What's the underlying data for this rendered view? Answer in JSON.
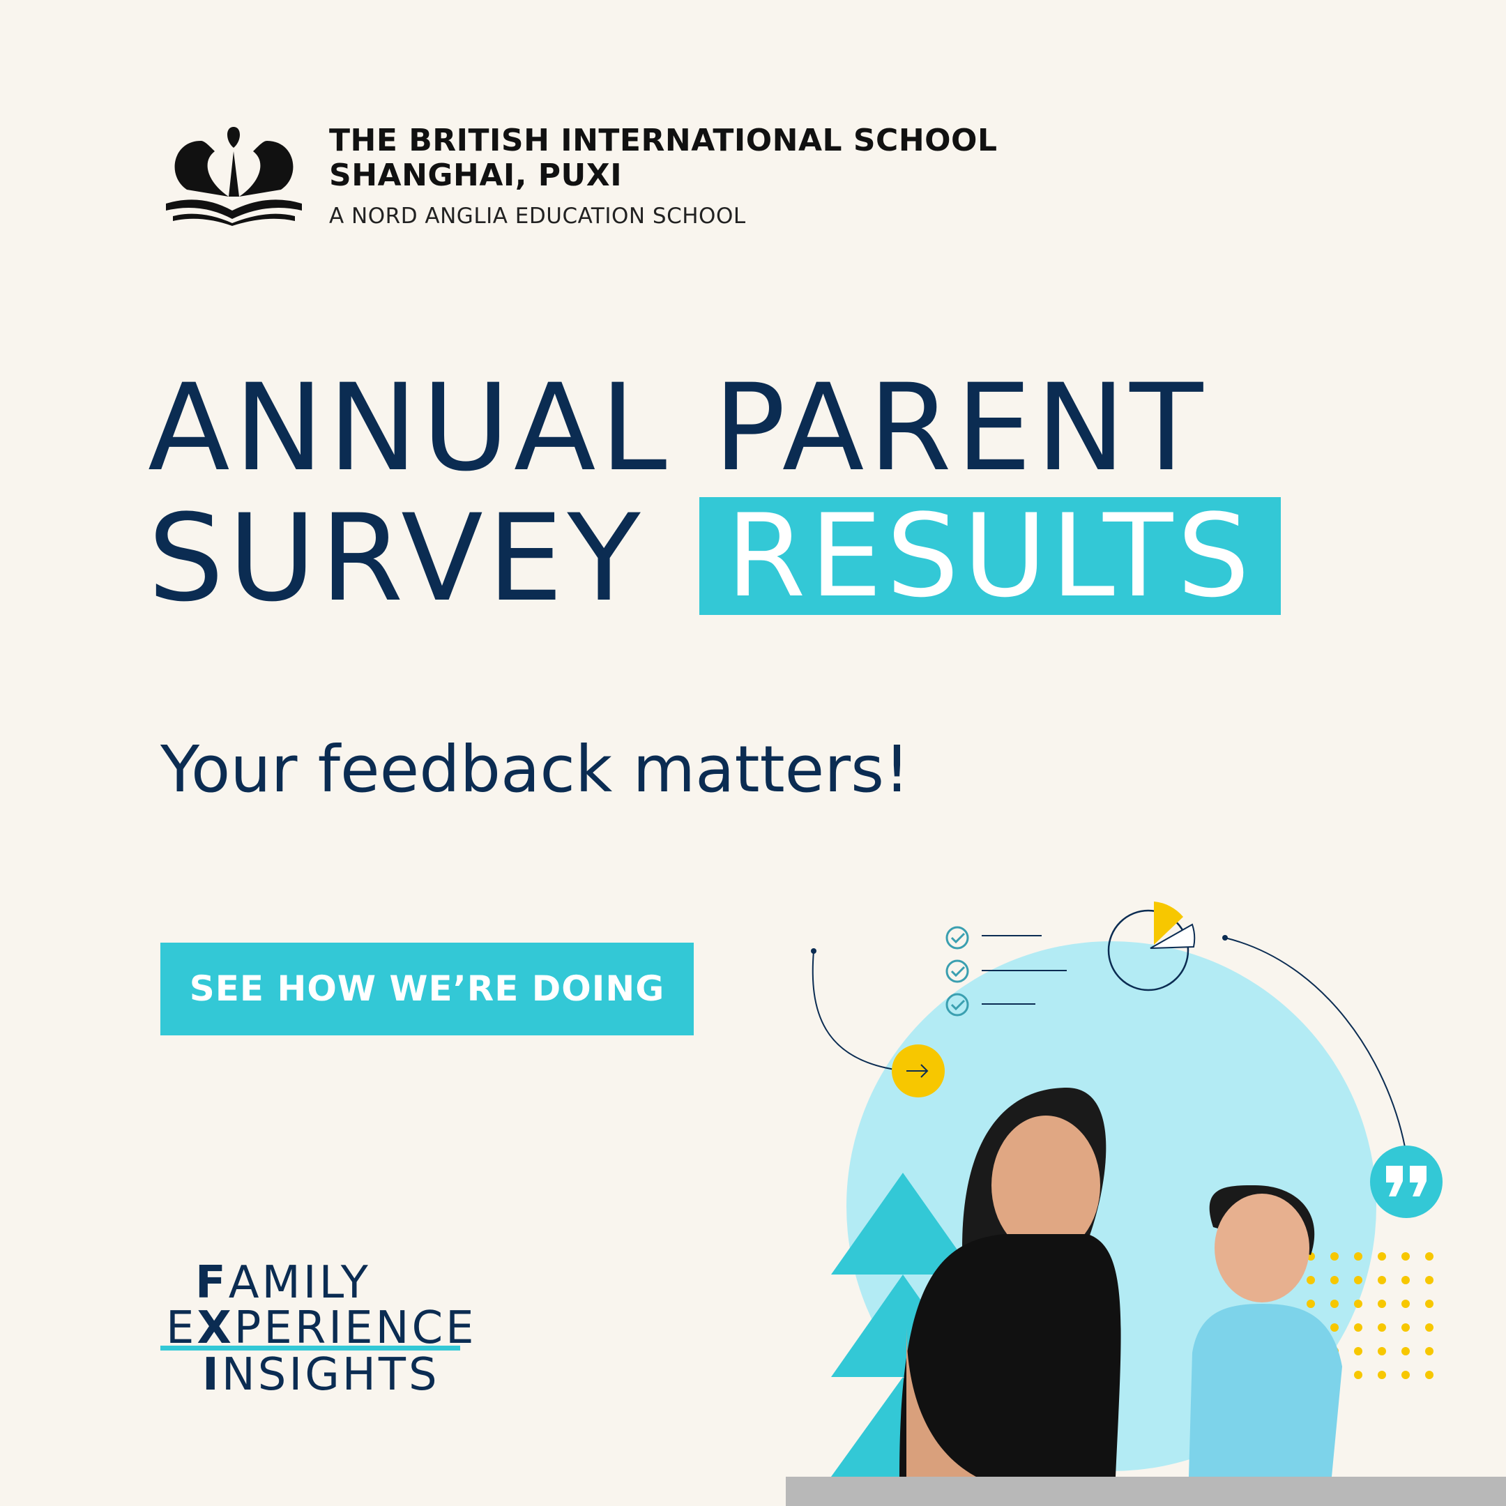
{
  "header": {
    "logo_icon": "crown-book-crest-icon",
    "school_name_line1": "THE BRITISH INTERNATIONAL SCHOOL",
    "school_name_line2": "SHANGHAI, PUXI",
    "school_tagline": "A NORD ANGLIA EDUCATION SCHOOL"
  },
  "hero": {
    "title_line1": "ANNUAL PARENT",
    "title_line2": "SURVEY",
    "title_highlight": "RESULTS",
    "subtitle": "Your feedback matters!",
    "cta_label": "SEE HOW WE’RE DOING"
  },
  "badge": {
    "line1_initial": "F",
    "line1_rest": "AMILY",
    "line2_pre": "E",
    "line2_initial": "X",
    "line2_rest": "PERIENCE",
    "line3_initial": "I",
    "line3_rest": "NSIGHTS"
  },
  "colors": {
    "navy": "#0b2c52",
    "teal": "#33c8d6",
    "light_blue": "#b3ebf4",
    "yellow": "#f7c700",
    "background": "#f9f5ee"
  },
  "illustration": {
    "icons": [
      "checklist-icon",
      "pie-chart-icon",
      "arrow-right-icon",
      "quote-icon",
      "dot-grid",
      "triangles"
    ],
    "photo": "teacher-and-child-photo"
  }
}
